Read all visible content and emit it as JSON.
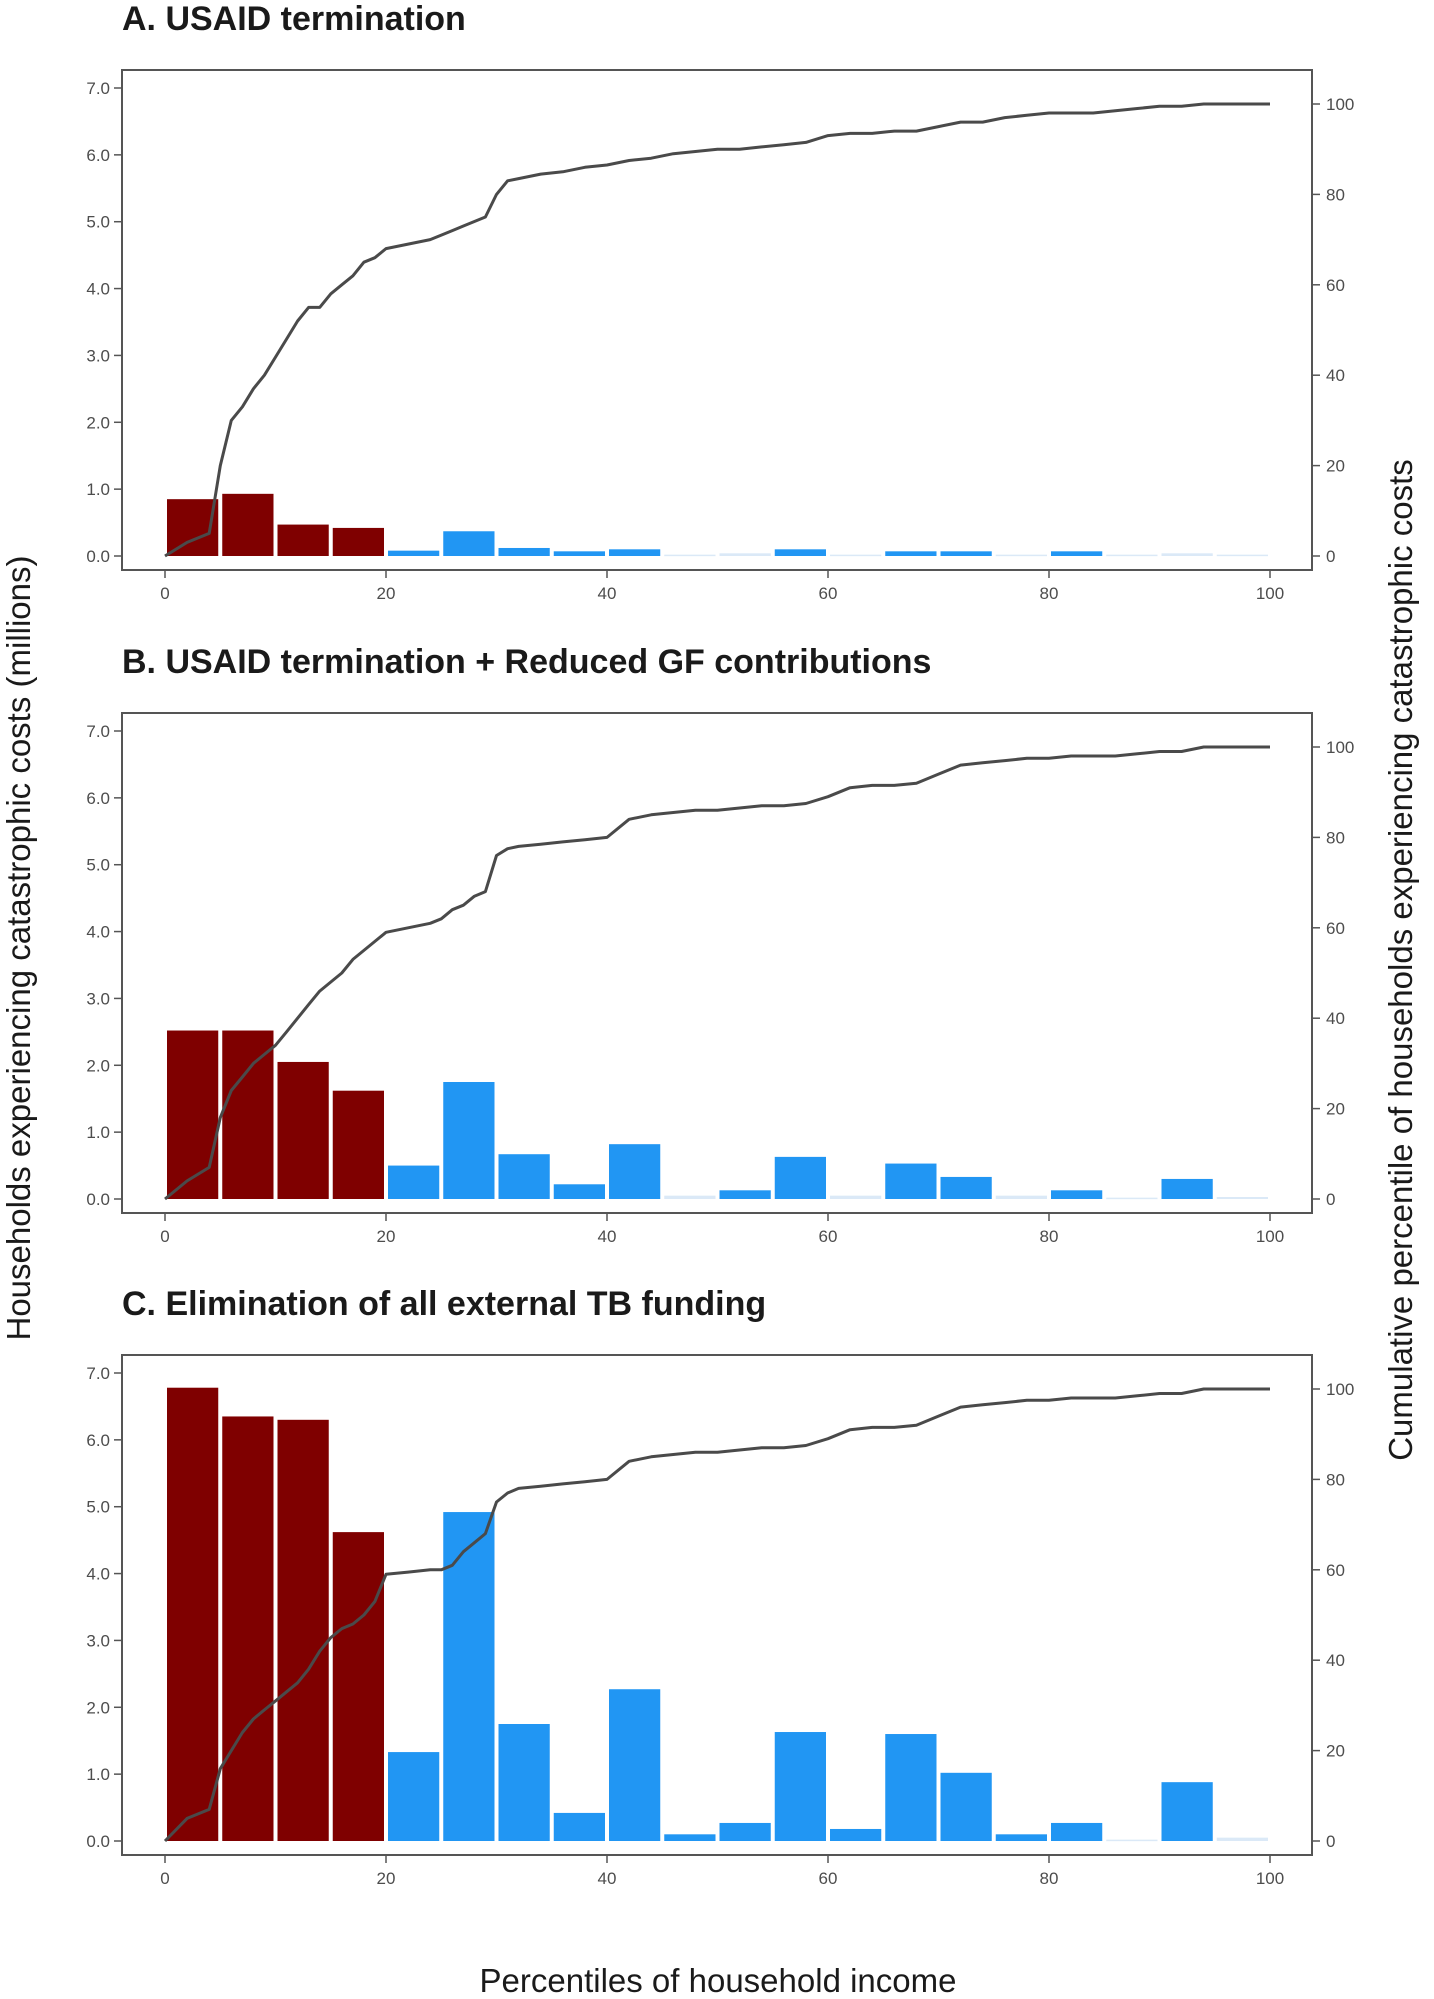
{
  "figure": {
    "ylabel_left": "Households experiencing catastrophic costs (millions)",
    "ylabel_right": "Cumulative percentile of households experiencing catastrophic costs",
    "xlabel": "Percentiles of household income"
  },
  "colors": {
    "bottom20": "#7f0000",
    "rest": "#2196f3",
    "zero": "#dbe9f7",
    "line": "#4a4a4a"
  },
  "chart_data": [
    {
      "type": "bar",
      "title": "A. USAID termination",
      "x_bin_starts": [
        0,
        5,
        10,
        15,
        20,
        25,
        30,
        35,
        40,
        45,
        50,
        55,
        60,
        65,
        70,
        75,
        80,
        85,
        90,
        95
      ],
      "values": [
        0.85,
        0.93,
        0.47,
        0.42,
        0.08,
        0.37,
        0.12,
        0.07,
        0.1,
        0.02,
        0.04,
        0.1,
        0.02,
        0.07,
        0.07,
        0.02,
        0.07,
        0.02,
        0.04,
        0.02
      ],
      "ylim_left": [
        0,
        7.0
      ],
      "ylim_right": [
        0,
        100
      ],
      "y_ticks_left": [
        "0.0",
        "1.0",
        "2.0",
        "3.0",
        "4.0",
        "5.0",
        "6.0",
        "7.0"
      ],
      "y_ticks_right": [
        "0",
        "20",
        "40",
        "60",
        "80",
        "100"
      ],
      "x_ticks": [
        "0",
        "20",
        "40",
        "60",
        "80",
        "100"
      ],
      "xlim": [
        0,
        100
      ],
      "cumulative": {
        "x": [
          0,
          2,
          4,
          5,
          6,
          7,
          8,
          9,
          10,
          11,
          12,
          13,
          14,
          15,
          16,
          17,
          18,
          19,
          20,
          22,
          24,
          25,
          26,
          27,
          28,
          29,
          30,
          31,
          32,
          34,
          36,
          38,
          40,
          42,
          44,
          46,
          48,
          50,
          52,
          54,
          56,
          58,
          60,
          62,
          64,
          66,
          68,
          70,
          72,
          74,
          76,
          78,
          80,
          82,
          84,
          86,
          88,
          90,
          92,
          94,
          96,
          98,
          100
        ],
        "y": [
          0,
          3,
          5,
          20,
          30,
          33,
          37,
          40,
          44,
          48,
          52,
          55,
          55,
          58,
          60,
          62,
          65,
          66,
          68,
          69,
          70,
          71,
          72,
          73,
          74,
          75,
          80,
          83,
          83.5,
          84.5,
          85,
          86,
          86.5,
          87.5,
          88,
          89,
          89.5,
          90,
          90,
          90.5,
          91,
          91.5,
          93,
          93.5,
          93.5,
          94,
          94,
          95,
          96,
          96,
          97,
          97.5,
          98,
          98,
          98,
          98.5,
          99,
          99.5,
          99.5,
          100,
          100,
          100,
          100
        ]
      }
    },
    {
      "type": "bar",
      "title": "B. USAID termination + Reduced GF contributions",
      "x_bin_starts": [
        0,
        5,
        10,
        15,
        20,
        25,
        30,
        35,
        40,
        45,
        50,
        55,
        60,
        65,
        70,
        75,
        80,
        85,
        90,
        95
      ],
      "values": [
        2.52,
        2.52,
        2.05,
        1.62,
        0.5,
        1.75,
        0.67,
        0.22,
        0.82,
        0.05,
        0.13,
        0.63,
        0.05,
        0.53,
        0.33,
        0.05,
        0.13,
        0.02,
        0.3,
        0.03
      ],
      "ylim_left": [
        0,
        7.0
      ],
      "ylim_right": [
        0,
        100
      ],
      "y_ticks_left": [
        "0.0",
        "1.0",
        "2.0",
        "3.0",
        "4.0",
        "5.0",
        "6.0",
        "7.0"
      ],
      "y_ticks_right": [
        "0",
        "20",
        "40",
        "60",
        "80",
        "100"
      ],
      "x_ticks": [
        "0",
        "20",
        "40",
        "60",
        "80",
        "100"
      ],
      "xlim": [
        0,
        100
      ],
      "cumulative": {
        "x": [
          0,
          2,
          4,
          5,
          6,
          7,
          8,
          9,
          10,
          11,
          12,
          13,
          14,
          15,
          16,
          17,
          18,
          19,
          20,
          22,
          24,
          25,
          26,
          27,
          28,
          29,
          30,
          31,
          32,
          34,
          36,
          38,
          40,
          42,
          44,
          46,
          48,
          50,
          52,
          54,
          56,
          58,
          60,
          62,
          64,
          66,
          68,
          70,
          72,
          74,
          76,
          78,
          80,
          82,
          84,
          86,
          88,
          90,
          92,
          94,
          96,
          98,
          100
        ],
        "y": [
          0,
          4,
          7,
          18,
          24,
          27,
          30,
          32,
          34,
          37,
          40,
          43,
          46,
          48,
          50,
          53,
          55,
          57,
          59,
          60,
          61,
          62,
          64,
          65,
          67,
          68,
          76,
          77.5,
          78,
          78.5,
          79,
          79.5,
          80,
          84,
          85,
          85.5,
          86,
          86,
          86.5,
          87,
          87,
          87.5,
          89,
          91,
          91.5,
          91.5,
          92,
          94,
          96,
          96.5,
          97,
          97.5,
          97.5,
          98,
          98,
          98,
          98.5,
          99,
          99,
          100,
          100,
          100,
          100
        ]
      }
    },
    {
      "type": "bar",
      "title": "C. Elimination of all external TB funding",
      "x_bin_starts": [
        0,
        5,
        10,
        15,
        20,
        25,
        30,
        35,
        40,
        45,
        50,
        55,
        60,
        65,
        70,
        75,
        80,
        85,
        90,
        95
      ],
      "values": [
        6.78,
        6.35,
        6.3,
        4.62,
        1.33,
        4.92,
        1.75,
        0.42,
        2.27,
        0.1,
        0.27,
        1.63,
        0.18,
        1.6,
        1.02,
        0.1,
        0.27,
        0.02,
        0.88,
        0.05
      ],
      "ylim_left": [
        0,
        7.0
      ],
      "ylim_right": [
        0,
        100
      ],
      "y_ticks_left": [
        "0.0",
        "1.0",
        "2.0",
        "3.0",
        "4.0",
        "5.0",
        "6.0",
        "7.0"
      ],
      "y_ticks_right": [
        "0",
        "20",
        "40",
        "60",
        "80",
        "100"
      ],
      "x_ticks": [
        "0",
        "20",
        "40",
        "60",
        "80",
        "100"
      ],
      "xlim": [
        0,
        100
      ],
      "cumulative": {
        "x": [
          0,
          2,
          4,
          5,
          6,
          7,
          8,
          9,
          10,
          11,
          12,
          13,
          14,
          15,
          16,
          17,
          18,
          19,
          20,
          22,
          24,
          25,
          26,
          27,
          28,
          29,
          30,
          31,
          32,
          34,
          36,
          38,
          40,
          42,
          44,
          46,
          48,
          50,
          52,
          54,
          56,
          58,
          60,
          62,
          64,
          66,
          68,
          70,
          72,
          74,
          76,
          78,
          80,
          82,
          84,
          86,
          88,
          90,
          92,
          94,
          96,
          98,
          100
        ],
        "y": [
          0,
          5,
          7,
          16,
          20,
          24,
          27,
          29,
          31,
          33,
          35,
          38,
          42,
          45,
          47,
          48,
          50,
          53,
          59,
          59.5,
          60,
          60,
          61,
          64,
          66,
          68,
          75,
          77,
          78,
          78.5,
          79,
          79.5,
          80,
          84,
          85,
          85.5,
          86,
          86,
          86.5,
          87,
          87,
          87.5,
          89,
          91,
          91.5,
          91.5,
          92,
          94,
          96,
          96.5,
          97,
          97.5,
          97.5,
          98,
          98,
          98,
          98.5,
          99,
          99,
          100,
          100,
          100,
          100
        ]
      }
    }
  ]
}
